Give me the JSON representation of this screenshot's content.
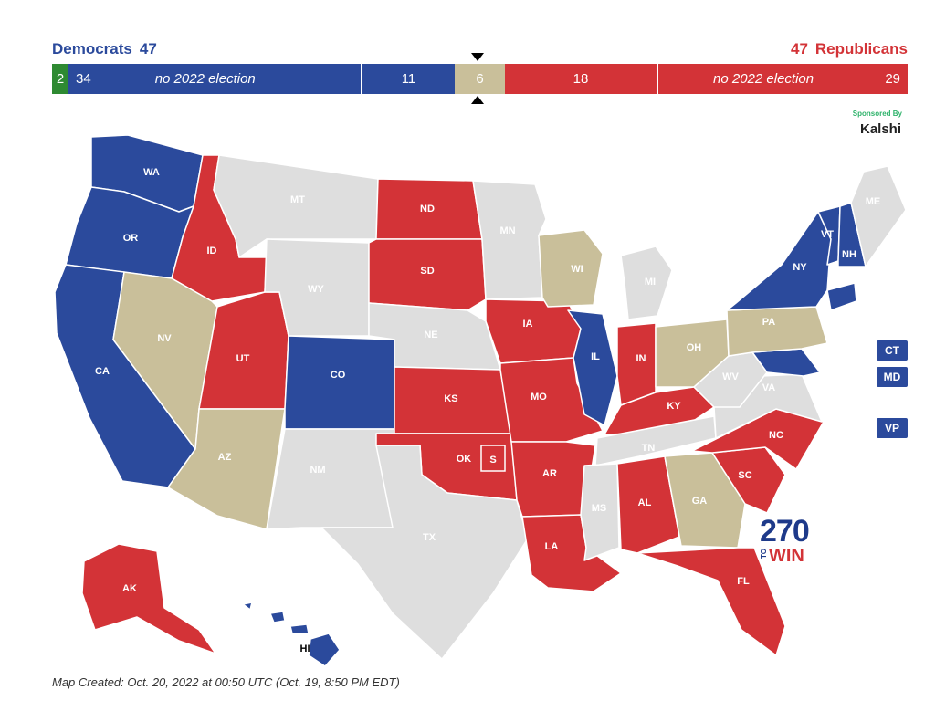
{
  "header": {
    "dem_label": "Democrats",
    "dem_total": "47",
    "rep_label": "Republicans",
    "rep_total": "47"
  },
  "balance_bar": {
    "independent": "2",
    "dem_not_up": "34",
    "not_up_label_left": "no 2022 election",
    "dem_up": "11",
    "tossup": "6",
    "rep_up": "18",
    "not_up_label_right": "no 2022 election",
    "rep_not_up": "29"
  },
  "sponsor": {
    "label": "Sponsored By",
    "name": "Kalshi"
  },
  "colors": {
    "democrat": "#2b4a9c",
    "republican": "#d33337",
    "tossup": "#c9bf9a",
    "no_race": "#dedede",
    "independent": "#2e8a32"
  },
  "states": {
    "WA": "dem",
    "OR": "dem",
    "CA": "dem",
    "CO": "dem",
    "IL": "dem",
    "NY": "dem",
    "VT": "dem",
    "NH": "dem",
    "CT": "dem",
    "MD": "dem",
    "HI": "dem",
    "ID": "rep",
    "UT": "rep",
    "ND": "rep",
    "SD": "rep",
    "KS": "rep",
    "OK": "rep",
    "IA": "rep",
    "MO": "rep",
    "AR": "rep",
    "LA": "rep",
    "IN": "rep",
    "KY": "rep",
    "AL": "rep",
    "FL": "rep",
    "NC": "rep",
    "SC": "rep",
    "AK": "rep",
    "NV": "tossup",
    "AZ": "tossup",
    "WI": "tossup",
    "OH": "tossup",
    "PA": "tossup",
    "GA": "tossup",
    "MT": "none",
    "WY": "none",
    "NE": "none",
    "NM": "none",
    "TX": "none",
    "MN": "none",
    "MI": "none",
    "WV": "none",
    "VA": "none",
    "TN": "none",
    "MS": "none",
    "ME": "none"
  },
  "labels": {
    "WA": "WA",
    "OR": "OR",
    "CA": "CA",
    "ID": "ID",
    "NV": "NV",
    "UT": "UT",
    "AZ": "AZ",
    "MT": "MT",
    "WY": "WY",
    "CO": "CO",
    "NM": "NM",
    "ND": "ND",
    "SD": "SD",
    "NE": "NE",
    "KS": "KS",
    "OK": "OK",
    "S": "S",
    "TX": "TX",
    "MN": "MN",
    "IA": "IA",
    "MO": "MO",
    "AR": "AR",
    "LA": "LA",
    "WI": "WI",
    "IL": "IL",
    "MI": "MI",
    "IN": "IN",
    "OH": "OH",
    "KY": "KY",
    "TN": "TN",
    "MS": "MS",
    "AL": "AL",
    "GA": "GA",
    "FL": "FL",
    "SC": "SC",
    "NC": "NC",
    "VA": "VA",
    "WV": "WV",
    "PA": "PA",
    "NY": "NY",
    "VT": "VT",
    "NH": "NH",
    "ME": "ME",
    "AK": "AK",
    "HI": "HI"
  },
  "side_boxes": {
    "CT": "CT",
    "MD": "MD",
    "VP": "VP"
  },
  "logo": {
    "number": "270",
    "to": "TO",
    "win": "WIN"
  },
  "footer": "Map Created: Oct. 20, 2022 at 00:50 UTC (Oct. 19, 8:50 PM EDT)"
}
